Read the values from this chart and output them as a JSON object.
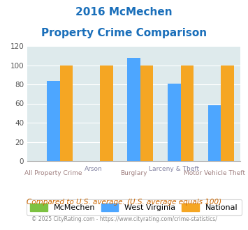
{
  "title_line1": "2016 McMechen",
  "title_line2": "Property Crime Comparison",
  "categories": [
    "All Property Crime",
    "Arson",
    "Burglary",
    "Larceny & Theft",
    "Motor Vehicle Theft"
  ],
  "mcmechen_values": [
    0,
    0,
    0,
    0,
    0
  ],
  "wv_values": [
    84,
    0,
    108,
    81,
    58
  ],
  "national_values": [
    100,
    100,
    100,
    100,
    100
  ],
  "bar_color_mcmechen": "#7dc242",
  "bar_color_wv": "#4da6ff",
  "bar_color_national": "#f5a623",
  "ylim": [
    0,
    120
  ],
  "yticks": [
    0,
    20,
    40,
    60,
    80,
    100,
    120
  ],
  "bg_color": "#deeaec",
  "title_color": "#1a6fba",
  "xlabel_color_bottom": "#a08080",
  "xlabel_color_top": "#8080a0",
  "footer_text": "Compared to U.S. average. (U.S. average equals 100)",
  "copyright_text": "© 2025 CityRating.com - https://www.cityrating.com/crime-statistics/",
  "copyright_url": "https://www.cityrating.com/crime-statistics/",
  "legend_labels": [
    "McMechen",
    "West Virginia",
    "National"
  ],
  "bar_width": 0.32,
  "tick_labels_bottom": [
    "All Property Crime",
    "",
    "Burglary",
    "",
    "Motor Vehicle Theft"
  ],
  "tick_labels_stagger": [
    "",
    "Arson",
    "",
    "Larceny & Theft",
    ""
  ]
}
